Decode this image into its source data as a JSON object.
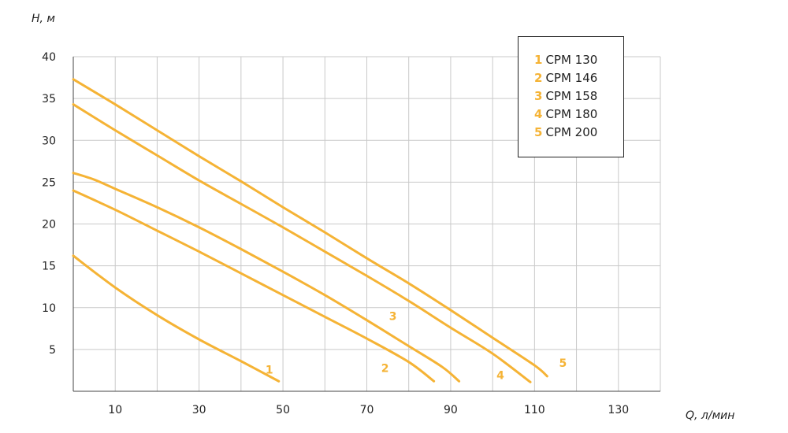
{
  "colors": {
    "curve": "#F5B335",
    "grid": "#c9c9c9",
    "axis": "#444444",
    "text": "#222222"
  },
  "chart_data": {
    "type": "line",
    "ylabel": "H, м",
    "xlabel": "Q, л/мин",
    "xlim": [
      0,
      140
    ],
    "ylim": [
      0,
      40
    ],
    "x_ticks": [
      10,
      30,
      50,
      70,
      90,
      110,
      130
    ],
    "y_ticks": [
      5,
      10,
      15,
      20,
      25,
      30,
      35,
      40
    ],
    "grid": true,
    "legend_position": "top-right",
    "legend": [
      {
        "num": "1",
        "name": "CPM 130"
      },
      {
        "num": "2",
        "name": "CPM 146"
      },
      {
        "num": "3",
        "name": "CPM 158"
      },
      {
        "num": "4",
        "name": "CPM 180"
      },
      {
        "num": "5",
        "name": "CPM 200"
      }
    ],
    "series": [
      {
        "label": "1",
        "x": [
          0,
          10,
          20,
          30,
          40,
          49
        ],
        "y": [
          16.2,
          12.4,
          9.1,
          6.2,
          3.6,
          1.2
        ]
      },
      {
        "label": "2",
        "x": [
          0,
          10,
          20,
          30,
          40,
          50,
          60,
          70,
          80,
          86
        ],
        "y": [
          24.0,
          21.7,
          19.2,
          16.7,
          14.1,
          11.5,
          8.9,
          6.3,
          3.5,
          1.2
        ]
      },
      {
        "label": "3",
        "x": [
          0,
          5,
          10,
          20,
          30,
          40,
          50,
          60,
          70,
          80,
          88,
          92
        ],
        "y": [
          26.1,
          25.3,
          24.2,
          22.0,
          19.6,
          17.0,
          14.3,
          11.5,
          8.5,
          5.4,
          2.9,
          1.2
        ]
      },
      {
        "label": "4",
        "x": [
          0,
          10,
          20,
          30,
          40,
          50,
          60,
          70,
          80,
          90,
          100,
          109
        ],
        "y": [
          34.3,
          31.2,
          28.2,
          25.2,
          22.4,
          19.6,
          16.7,
          13.8,
          10.8,
          7.6,
          4.5,
          1.1
        ]
      },
      {
        "label": "5",
        "x": [
          0,
          10,
          20,
          30,
          40,
          50,
          60,
          70,
          80,
          90,
          100,
          110,
          113
        ],
        "y": [
          37.3,
          34.3,
          31.2,
          28.1,
          25.1,
          22.0,
          19.0,
          15.9,
          12.9,
          9.7,
          6.4,
          3.1,
          1.8
        ]
      }
    ]
  }
}
